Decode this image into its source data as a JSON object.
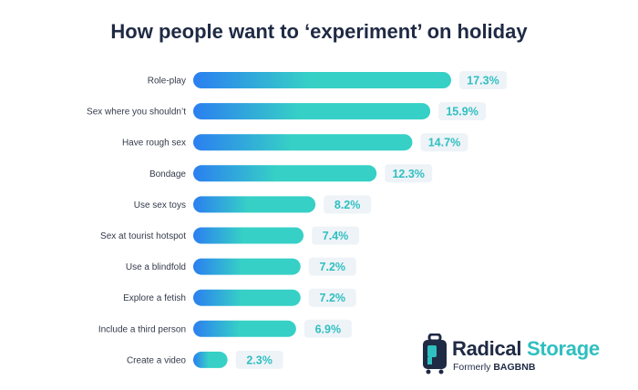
{
  "chart_data": {
    "type": "bar",
    "orientation": "horizontal",
    "title": "How people want to ‘experiment’ on holiday",
    "categories": [
      "Role-play",
      "Sex where you shouldn’t",
      "Have rough sex",
      "Bondage",
      "Use sex toys",
      "Sex at tourist hotspot",
      "Use a blindfold",
      "Explore a fetish",
      "Include a third person",
      "Create a video"
    ],
    "values": [
      17.3,
      15.9,
      14.7,
      12.3,
      8.2,
      7.4,
      7.2,
      7.2,
      6.9,
      2.3
    ],
    "value_labels": [
      "17.3%",
      "15.9%",
      "14.7%",
      "12.3%",
      "8.2%",
      "7.4%",
      "7.2%",
      "7.2%",
      "6.9%",
      "2.3%"
    ],
    "unit": "%",
    "xlim": [
      0,
      17.3
    ],
    "grid": false,
    "legend": "none",
    "colors": {
      "bar_start": "#2b7ff0",
      "bar_end": "#36d0c6",
      "value_text": "#2fbfc0",
      "title": "#1f2a44"
    }
  },
  "brand": {
    "name_part1": "Radical ",
    "name_part2": "Storage",
    "subtitle_prefix": "Formerly ",
    "subtitle_bold": "BAGBNB",
    "icon": "suitcase-logo-icon",
    "colors": {
      "dark": "#1f2a44",
      "accent": "#2fbfc0"
    }
  }
}
